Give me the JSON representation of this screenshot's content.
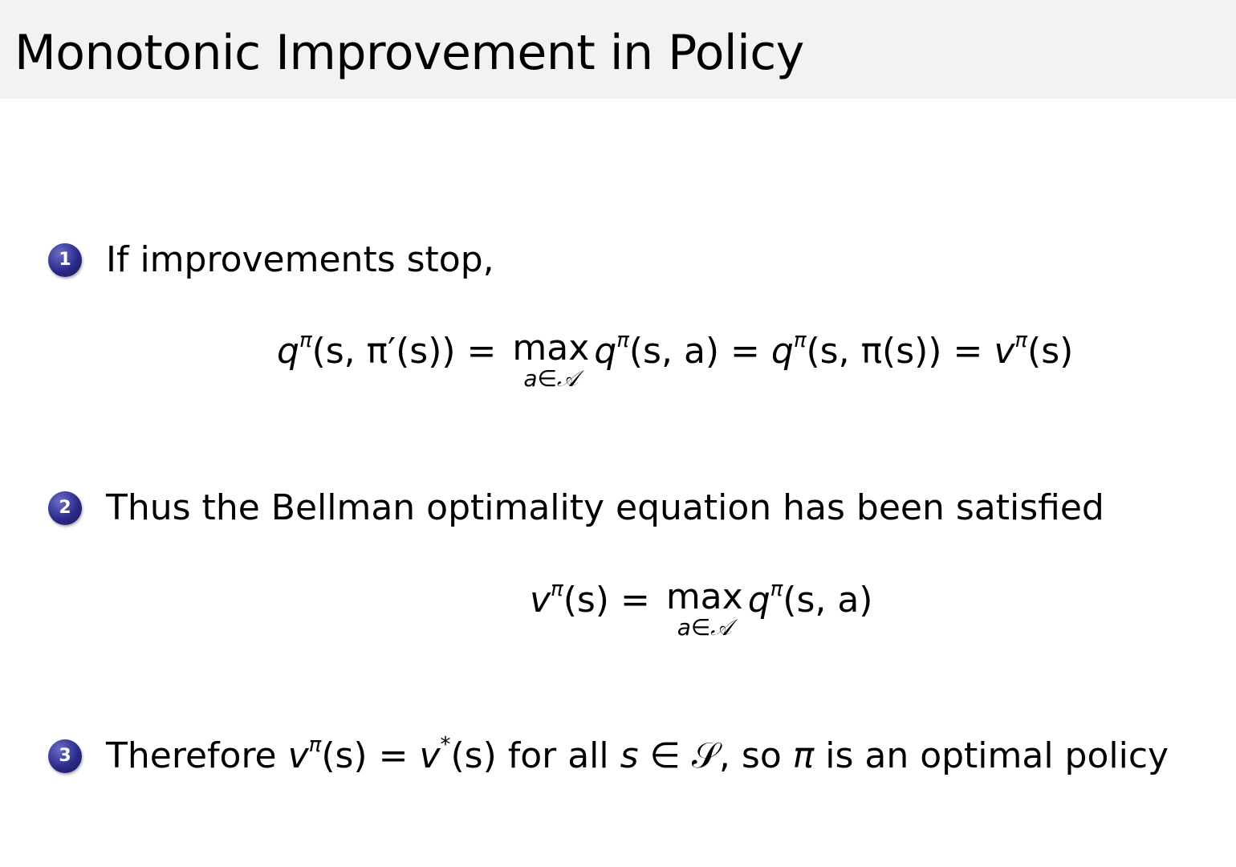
{
  "title": "Monotonic Improvement in Policy",
  "items": [
    {
      "number": "1",
      "text": "If improvements stop,"
    },
    {
      "number": "2",
      "text": "Thus the Bellman optimality equation has been satisfied"
    },
    {
      "number": "3",
      "text": "Therefore vπ(s) = v*(s) for all s ∈ 𝒮, so π is an optimal policy"
    }
  ],
  "eq1": [
    {
      "t": "q",
      "it": true
    },
    {
      "sup": "π"
    },
    {
      "t": "(s, π′(s)) = "
    },
    {
      "max": "max",
      "sub": "a∈𝒜"
    },
    {
      "t": "q",
      "it": true
    },
    {
      "sup": "π"
    },
    {
      "t": "(s, a) = "
    },
    {
      "t": "q",
      "it": true
    },
    {
      "sup": "π"
    },
    {
      "t": "(s, π(s)) = "
    },
    {
      "t": "v",
      "it": true
    },
    {
      "sup": "π"
    },
    {
      "t": "(s)"
    }
  ],
  "eq2": [
    {
      "t": "v",
      "it": true
    },
    {
      "sup": "π"
    },
    {
      "t": "(s) = "
    },
    {
      "max": "max",
      "sub": "a∈𝒜"
    },
    {
      "t": "q",
      "it": true
    },
    {
      "sup": "π"
    },
    {
      "t": "(s, a)"
    }
  ],
  "item3_parts": [
    {
      "t": "Therefore "
    },
    {
      "t": "v",
      "it": true
    },
    {
      "sup": "π"
    },
    {
      "t": "(s) = "
    },
    {
      "t": "v",
      "it": true
    },
    {
      "sup": "*"
    },
    {
      "t": "(s) for all "
    },
    {
      "t": "s",
      "it": true
    },
    {
      "t": " ∈ 𝒮, so "
    },
    {
      "t": "π",
      "it": true
    },
    {
      "t": " is an optimal policy"
    }
  ],
  "colors": {
    "title_bar": "#f2f2f2",
    "bullet": "#2b2b8a"
  }
}
